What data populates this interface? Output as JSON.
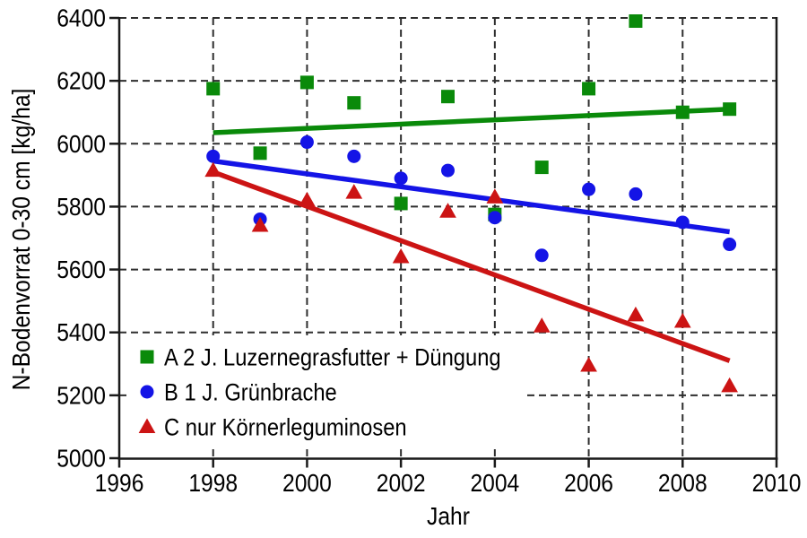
{
  "chart_data": {
    "type": "scatter",
    "title": "",
    "xlabel": "Jahr",
    "ylabel": "N-Bodenvorrat 0-30 cm [kg/ha]",
    "xlim": [
      1996,
      2010
    ],
    "ylim": [
      5000,
      6400
    ],
    "xticks": [
      1996,
      1998,
      2000,
      2002,
      2004,
      2006,
      2008,
      2010
    ],
    "yticks": [
      5000,
      5200,
      5400,
      5600,
      5800,
      6000,
      6200,
      6400
    ],
    "grid": "dashed-both-axes",
    "legend_position": "lower-left-inside",
    "axis_color": "#1a1a1a",
    "grid_color": "#2e2e2e",
    "x": [
      1998,
      1999,
      2000,
      2001,
      2002,
      2003,
      2004,
      2005,
      2006,
      2007,
      2008,
      2009
    ],
    "series": [
      {
        "name": "A 2 J. Luzernegrasfutter + Düngung",
        "marker": "square",
        "color": "#0a8a0a",
        "values": [
          6175,
          5970,
          6195,
          6130,
          5810,
          6150,
          5775,
          5925,
          6175,
          6390,
          6100,
          6110
        ],
        "trend": {
          "x": [
            1998,
            2009
          ],
          "y": [
            6035,
            6110
          ]
        }
      },
      {
        "name": "B 1 J. Grünbrache",
        "marker": "circle",
        "color": "#1414e6",
        "values": [
          5960,
          5760,
          6005,
          5960,
          5890,
          5915,
          5765,
          5645,
          5855,
          5840,
          5750,
          5680
        ],
        "trend": {
          "x": [
            1998,
            2009
          ],
          "y": [
            5945,
            5720
          ]
        }
      },
      {
        "name": "C nur Körnerleguminosen",
        "marker": "triangle",
        "color": "#cc1414",
        "values": [
          5915,
          5740,
          5820,
          5845,
          5640,
          5785,
          5830,
          5420,
          5295,
          5455,
          5435,
          5230
        ],
        "trend": {
          "x": [
            1998,
            2009
          ],
          "y": [
            5910,
            5310
          ]
        }
      }
    ]
  }
}
